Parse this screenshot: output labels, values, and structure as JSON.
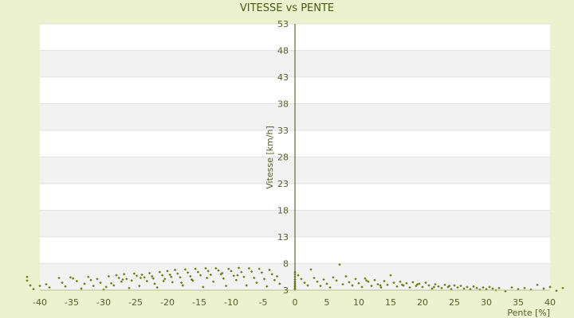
{
  "chart_data": {
    "type": "scatter",
    "title": "VITESSE vs PENTE",
    "xlabel": "Pente [%]",
    "ylabel": "Vitesse [km/h]",
    "xlim": [
      -40,
      40
    ],
    "ylim": [
      3,
      53
    ],
    "x_ticks": [
      -40,
      -35,
      -30,
      -25,
      -20,
      -15,
      -10,
      -5,
      0,
      5,
      10,
      15,
      20,
      25,
      30,
      35,
      40
    ],
    "y_ticks": [
      3,
      8,
      13,
      18,
      23,
      28,
      33,
      38,
      43,
      48,
      53
    ],
    "grid": "alternating horizontal bands",
    "point_color": "#6b7f16",
    "points": [
      [
        -42,
        5.5
      ],
      [
        -42,
        4.8
      ],
      [
        -41.5,
        3.9
      ],
      [
        -41,
        3.2
      ],
      [
        -40,
        3.8
      ],
      [
        -39,
        4.1
      ],
      [
        -38.5,
        3.5
      ],
      [
        -37,
        5.3
      ],
      [
        -36.5,
        4.4
      ],
      [
        -36,
        3.7
      ],
      [
        -35.2,
        5.4
      ],
      [
        -34.8,
        5.2
      ],
      [
        -34.2,
        4.7
      ],
      [
        -33.5,
        3.3
      ],
      [
        -33,
        4.2
      ],
      [
        -32.4,
        5.5
      ],
      [
        -32,
        4.9
      ],
      [
        -31.6,
        3.8
      ],
      [
        -31,
        5.1
      ],
      [
        -30.5,
        4.4
      ],
      [
        -30,
        3.1
      ],
      [
        -29.6,
        3.6
      ],
      [
        -29.2,
        5.6
      ],
      [
        -28.8,
        4.3
      ],
      [
        -28.4,
        3.9
      ],
      [
        -28,
        5.8
      ],
      [
        -27.6,
        5.3
      ],
      [
        -27.2,
        4.6
      ],
      [
        -26.8,
        6.0
      ],
      [
        -26.4,
        5.1
      ],
      [
        -26,
        3.4
      ],
      [
        -25.6,
        4.8
      ],
      [
        -25.2,
        6.1
      ],
      [
        -24.8,
        5.7
      ],
      [
        -24.4,
        3.8
      ],
      [
        -24,
        5.9
      ],
      [
        -23.6,
        5.4
      ],
      [
        -23.2,
        4.7
      ],
      [
        -22.8,
        6.2
      ],
      [
        -22.4,
        5.6
      ],
      [
        -22,
        4.2
      ],
      [
        -21.6,
        3.5
      ],
      [
        -21.2,
        6.4
      ],
      [
        -20.8,
        5.8
      ],
      [
        -20.4,
        5.1
      ],
      [
        -20,
        6.6
      ],
      [
        -19.6,
        5.9
      ],
      [
        -19.2,
        4.5
      ],
      [
        -18.8,
        6.8
      ],
      [
        -18.4,
        6.1
      ],
      [
        -18,
        5.4
      ],
      [
        -17.6,
        3.9
      ],
      [
        -17.2,
        6.9
      ],
      [
        -16.8,
        6.3
      ],
      [
        -16.4,
        5.6
      ],
      [
        -16,
        4.8
      ],
      [
        -15.6,
        7.0
      ],
      [
        -15.2,
        6.4
      ],
      [
        -14.8,
        5.8
      ],
      [
        -14.4,
        3.6
      ],
      [
        -14,
        7.1
      ],
      [
        -13.6,
        6.6
      ],
      [
        -13.2,
        5.9
      ],
      [
        -12.8,
        4.6
      ],
      [
        -12.4,
        7.1
      ],
      [
        -12,
        6.7
      ],
      [
        -11.6,
        6.0
      ],
      [
        -11.2,
        5.2
      ],
      [
        -10.8,
        3.8
      ],
      [
        -10.4,
        7.0
      ],
      [
        -10,
        6.6
      ],
      [
        -9.6,
        5.7
      ],
      [
        -9.2,
        4.9
      ],
      [
        -8.8,
        7.2
      ],
      [
        -8.4,
        6.4
      ],
      [
        -8,
        5.5
      ],
      [
        -7.6,
        3.9
      ],
      [
        -7.2,
        7.1
      ],
      [
        -6.8,
        6.5
      ],
      [
        -6.4,
        5.3
      ],
      [
        -6,
        4.4
      ],
      [
        -5.6,
        7.0
      ],
      [
        -5.2,
        6.3
      ],
      [
        -4.8,
        5.1
      ],
      [
        -4.4,
        3.7
      ],
      [
        -4,
        6.8
      ],
      [
        -3.6,
        6.0
      ],
      [
        -3.2,
        4.9
      ],
      [
        -2.8,
        5.6
      ],
      [
        -2.4,
        4.2
      ],
      [
        -22.2,
        5.2
      ],
      [
        -19.4,
        5.5
      ],
      [
        -16.2,
        5.0
      ],
      [
        -13.8,
        5.3
      ],
      [
        -11.4,
        6.2
      ],
      [
        -9,
        5.8
      ],
      [
        -27,
        5.0
      ],
      [
        -24.2,
        5.3
      ],
      [
        -20.6,
        4.7
      ],
      [
        -17.8,
        4.4
      ],
      [
        0,
        3.1
      ],
      [
        0,
        3.4
      ],
      [
        0,
        3.7
      ],
      [
        0,
        4.0
      ],
      [
        0,
        4.3
      ],
      [
        0,
        4.6
      ],
      [
        0,
        5.0
      ],
      [
        0,
        5.5
      ],
      [
        0,
        6.0
      ],
      [
        0,
        6.4
      ],
      [
        0.5,
        5.8
      ],
      [
        1,
        5.1
      ],
      [
        1.5,
        4.4
      ],
      [
        2,
        3.9
      ],
      [
        2.5,
        6.9
      ],
      [
        3,
        5.3
      ],
      [
        3.5,
        4.6
      ],
      [
        4,
        3.8
      ],
      [
        4.5,
        5.0
      ],
      [
        5,
        4.2
      ],
      [
        5.5,
        3.5
      ],
      [
        6,
        5.4
      ],
      [
        6.5,
        4.8
      ],
      [
        7,
        7.8
      ],
      [
        7.5,
        4.1
      ],
      [
        8,
        5.6
      ],
      [
        8.5,
        4.5
      ],
      [
        9,
        3.9
      ],
      [
        9.5,
        5.1
      ],
      [
        10,
        4.3
      ],
      [
        10.5,
        3.6
      ],
      [
        11,
        5.2
      ],
      [
        11.5,
        4.6
      ],
      [
        12,
        3.8
      ],
      [
        12.5,
        4.9
      ],
      [
        13,
        4.1
      ],
      [
        13.5,
        3.5
      ],
      [
        14,
        4.7
      ],
      [
        14.5,
        4.0
      ],
      [
        15,
        5.8
      ],
      [
        15.5,
        4.4
      ],
      [
        16,
        3.7
      ],
      [
        16.5,
        4.6
      ],
      [
        17,
        3.9
      ],
      [
        17.5,
        4.3
      ],
      [
        18,
        3.5
      ],
      [
        18.5,
        4.5
      ],
      [
        19,
        3.8
      ],
      [
        19.5,
        4.2
      ],
      [
        20,
        3.6
      ],
      [
        20.5,
        4.4
      ],
      [
        21,
        3.9
      ],
      [
        21.5,
        3.3
      ],
      [
        22,
        4.1
      ],
      [
        22.5,
        3.7
      ],
      [
        23,
        3.4
      ],
      [
        23.5,
        4.0
      ],
      [
        24,
        3.6
      ],
      [
        24.5,
        3.2
      ],
      [
        25,
        3.9
      ],
      [
        25.5,
        3.5
      ],
      [
        26,
        3.8
      ],
      [
        26.5,
        3.3
      ],
      [
        27,
        3.6
      ],
      [
        27.5,
        3.2
      ],
      [
        28,
        3.7
      ],
      [
        28.5,
        3.4
      ],
      [
        29,
        3.1
      ],
      [
        29.5,
        3.5
      ],
      [
        30,
        3.2
      ],
      [
        30.5,
        3.6
      ],
      [
        31,
        3.3
      ],
      [
        31.5,
        3.0
      ],
      [
        32,
        3.4
      ],
      [
        33,
        2.8
      ],
      [
        34,
        3.5
      ],
      [
        35,
        3.2
      ],
      [
        36,
        3.4
      ],
      [
        37,
        3.1
      ],
      [
        38,
        4.0
      ],
      [
        39,
        3.3
      ],
      [
        40,
        3.6
      ],
      [
        41,
        2.9
      ],
      [
        42,
        3.4
      ],
      [
        11.2,
        4.8
      ],
      [
        13.4,
        3.9
      ],
      [
        16.8,
        4.0
      ],
      [
        19.2,
        4.1
      ],
      [
        21.8,
        3.6
      ],
      [
        24.2,
        3.8
      ]
    ]
  }
}
